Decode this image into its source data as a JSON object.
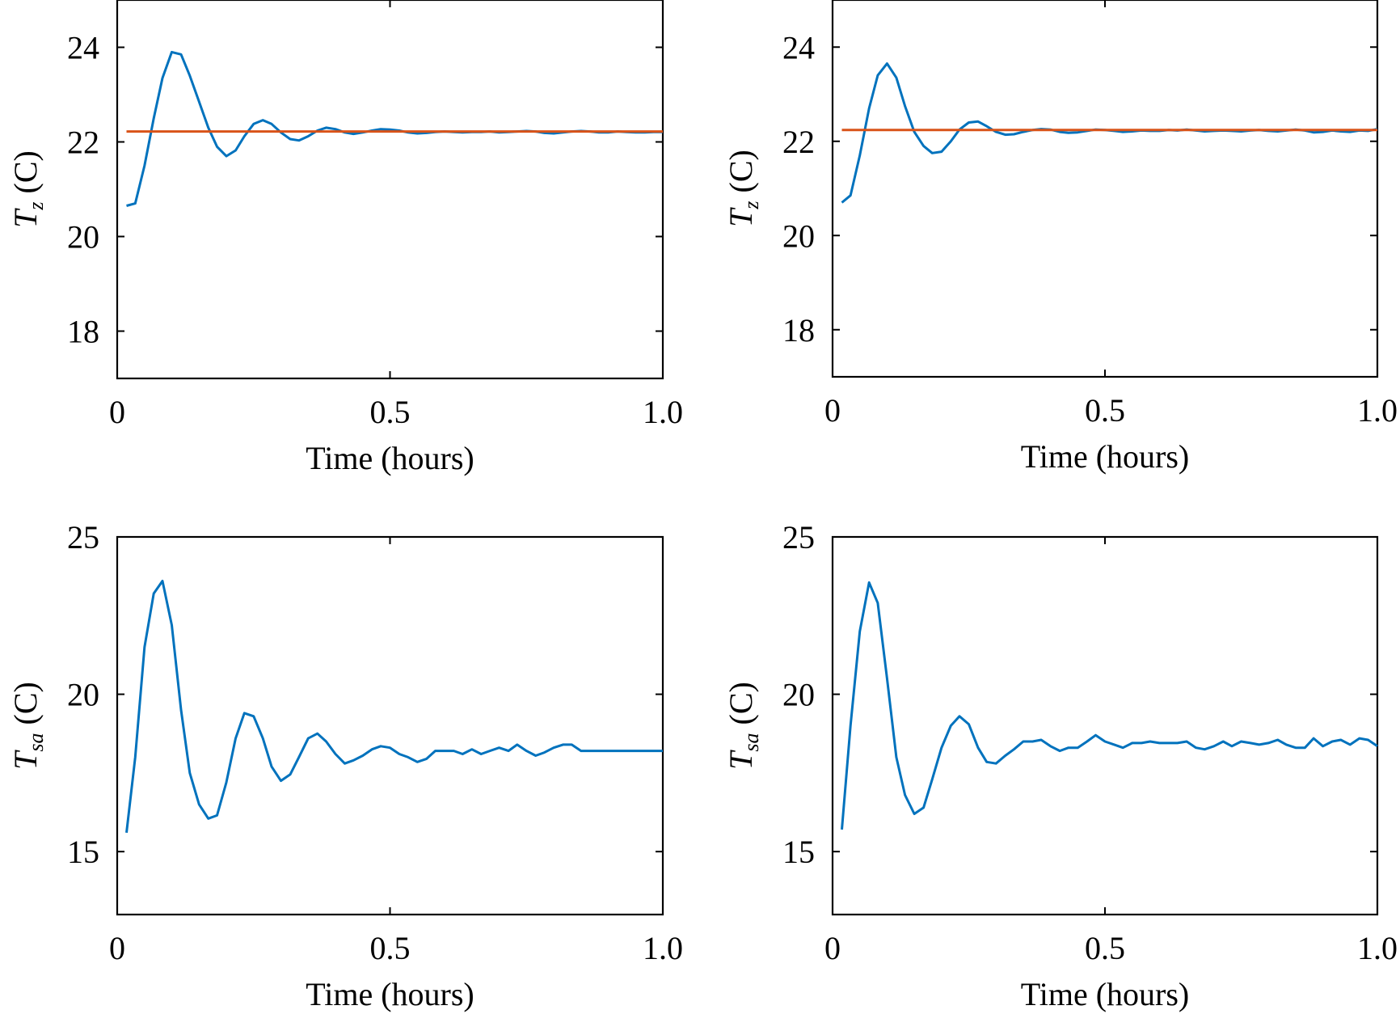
{
  "chart_data": [
    {
      "type": "line",
      "ylabel": {
        "symbol": "T",
        "subscript": "z",
        "unit": "(C)"
      },
      "xlabel": "Time (hours)",
      "xlim": [
        0,
        1.0
      ],
      "ylim": [
        17,
        25
      ],
      "xticks": [
        0,
        0.5,
        1.0
      ],
      "xtick_labels": [
        "0",
        "0.5",
        "1.0"
      ],
      "yticks": [
        18,
        20,
        22,
        24
      ],
      "ytick_labels": [
        "18",
        "20",
        "22",
        "24"
      ],
      "grid": false,
      "series": [
        {
          "color": "#0072BD",
          "x": [
            0.017,
            0.033,
            0.05,
            0.067,
            0.083,
            0.1,
            0.117,
            0.133,
            0.15,
            0.167,
            0.183,
            0.2,
            0.217,
            0.233,
            0.25,
            0.267,
            0.283,
            0.3,
            0.317,
            0.333,
            0.35,
            0.367,
            0.383,
            0.4,
            0.417,
            0.433,
            0.45,
            0.467,
            0.483,
            0.5,
            0.517,
            0.533,
            0.55,
            0.567,
            0.583,
            0.6,
            0.617,
            0.633,
            0.65,
            0.667,
            0.683,
            0.7,
            0.717,
            0.733,
            0.75,
            0.767,
            0.783,
            0.8,
            0.817,
            0.833,
            0.85,
            0.867,
            0.883,
            0.9,
            0.917,
            0.933,
            0.95,
            0.967,
            0.983,
            1.0
          ],
          "values": [
            20.65,
            20.7,
            21.5,
            22.5,
            23.35,
            23.9,
            23.85,
            23.4,
            22.85,
            22.3,
            21.9,
            21.7,
            21.82,
            22.12,
            22.38,
            22.46,
            22.38,
            22.2,
            22.06,
            22.03,
            22.12,
            22.24,
            22.3,
            22.27,
            22.2,
            22.17,
            22.2,
            22.24,
            22.27,
            22.26,
            22.24,
            22.2,
            22.18,
            22.19,
            22.21,
            22.22,
            22.21,
            22.2,
            22.21,
            22.21,
            22.22,
            22.2,
            22.21,
            22.22,
            22.23,
            22.22,
            22.19,
            22.18,
            22.2,
            22.22,
            22.23,
            22.22,
            22.2,
            22.2,
            22.22,
            22.21,
            22.2,
            22.2,
            22.21,
            22.21
          ]
        },
        {
          "color": "#D95319",
          "x": [
            0.017,
            1.0
          ],
          "values": [
            22.22,
            22.22
          ]
        }
      ]
    },
    {
      "type": "line",
      "ylabel": {
        "symbol": "T",
        "subscript": "z",
        "unit": "(C)"
      },
      "xlabel": "Time (hours)",
      "xlim": [
        0,
        1.0
      ],
      "ylim": [
        17,
        25
      ],
      "xticks": [
        0,
        0.5,
        1.0
      ],
      "xtick_labels": [
        "0",
        "0.5",
        "1.0"
      ],
      "yticks": [
        18,
        20,
        22,
        24
      ],
      "ytick_labels": [
        "18",
        "20",
        "22",
        "24"
      ],
      "grid": false,
      "series": [
        {
          "color": "#0072BD",
          "x": [
            0.017,
            0.033,
            0.05,
            0.067,
            0.083,
            0.1,
            0.117,
            0.133,
            0.15,
            0.167,
            0.183,
            0.2,
            0.217,
            0.233,
            0.25,
            0.267,
            0.283,
            0.3,
            0.317,
            0.333,
            0.35,
            0.367,
            0.383,
            0.4,
            0.417,
            0.433,
            0.45,
            0.467,
            0.483,
            0.5,
            0.517,
            0.533,
            0.55,
            0.567,
            0.583,
            0.6,
            0.617,
            0.633,
            0.65,
            0.667,
            0.683,
            0.7,
            0.717,
            0.733,
            0.75,
            0.767,
            0.783,
            0.8,
            0.817,
            0.833,
            0.85,
            0.867,
            0.883,
            0.9,
            0.917,
            0.933,
            0.95,
            0.967,
            0.983,
            1.0
          ],
          "values": [
            20.7,
            20.85,
            21.7,
            22.7,
            23.4,
            23.65,
            23.35,
            22.75,
            22.2,
            21.9,
            21.75,
            21.78,
            22.0,
            22.25,
            22.4,
            22.42,
            22.32,
            22.2,
            22.14,
            22.15,
            22.2,
            22.24,
            22.26,
            22.25,
            22.2,
            22.18,
            22.19,
            22.22,
            22.25,
            22.24,
            22.22,
            22.2,
            22.21,
            22.23,
            22.22,
            22.22,
            22.24,
            22.23,
            22.25,
            22.23,
            22.21,
            22.22,
            22.23,
            22.22,
            22.21,
            22.23,
            22.24,
            22.22,
            22.21,
            22.23,
            22.25,
            22.23,
            22.19,
            22.2,
            22.23,
            22.21,
            22.2,
            22.23,
            22.22,
            22.26
          ]
        },
        {
          "color": "#D95319",
          "x": [
            0.017,
            1.0
          ],
          "values": [
            22.24,
            22.24
          ]
        }
      ]
    },
    {
      "type": "line",
      "ylabel": {
        "symbol": "T",
        "subscript": "sa",
        "unit": "(C)"
      },
      "xlabel": "Time (hours)",
      "xlim": [
        0,
        1.0
      ],
      "ylim": [
        13,
        25
      ],
      "xticks": [
        0,
        0.5,
        1.0
      ],
      "xtick_labels": [
        "0",
        "0.5",
        "1.0"
      ],
      "yticks": [
        15,
        20,
        25
      ],
      "ytick_labels": [
        "15",
        "20",
        "25"
      ],
      "grid": false,
      "series": [
        {
          "color": "#0072BD",
          "x": [
            0.017,
            0.033,
            0.05,
            0.067,
            0.083,
            0.1,
            0.117,
            0.133,
            0.15,
            0.167,
            0.183,
            0.2,
            0.217,
            0.233,
            0.25,
            0.267,
            0.283,
            0.3,
            0.317,
            0.333,
            0.35,
            0.367,
            0.383,
            0.4,
            0.417,
            0.433,
            0.45,
            0.467,
            0.483,
            0.5,
            0.517,
            0.533,
            0.55,
            0.567,
            0.583,
            0.6,
            0.617,
            0.633,
            0.65,
            0.667,
            0.683,
            0.7,
            0.717,
            0.733,
            0.75,
            0.767,
            0.783,
            0.8,
            0.817,
            0.833,
            0.85,
            0.867,
            0.883,
            0.9,
            0.917,
            0.933,
            0.95,
            0.967,
            0.983,
            1.0
          ],
          "values": [
            15.6,
            18.0,
            21.5,
            23.2,
            23.6,
            22.2,
            19.5,
            17.5,
            16.5,
            16.05,
            16.15,
            17.2,
            18.6,
            19.4,
            19.3,
            18.6,
            17.7,
            17.25,
            17.45,
            18.0,
            18.6,
            18.75,
            18.5,
            18.1,
            17.8,
            17.9,
            18.05,
            18.25,
            18.35,
            18.3,
            18.1,
            18.0,
            17.85,
            17.95,
            18.2,
            18.2,
            18.2,
            18.1,
            18.25,
            18.1,
            18.2,
            18.3,
            18.2,
            18.4,
            18.2,
            18.05,
            18.15,
            18.3,
            18.4,
            18.4,
            18.2,
            18.2,
            18.2,
            18.2,
            18.2,
            18.2,
            18.2,
            18.2,
            18.2,
            18.2
          ]
        }
      ]
    },
    {
      "type": "line",
      "ylabel": {
        "symbol": "T",
        "subscript": "sa",
        "unit": "(C)"
      },
      "xlabel": "Time (hours)",
      "xlim": [
        0,
        1.0
      ],
      "ylim": [
        13,
        25
      ],
      "xticks": [
        0,
        0.5,
        1.0
      ],
      "xtick_labels": [
        "0",
        "0.5",
        "1.0"
      ],
      "yticks": [
        15,
        20,
        25
      ],
      "ytick_labels": [
        "15",
        "20",
        "25"
      ],
      "grid": false,
      "series": [
        {
          "color": "#0072BD",
          "x": [
            0.017,
            0.033,
            0.05,
            0.067,
            0.083,
            0.1,
            0.117,
            0.133,
            0.15,
            0.167,
            0.183,
            0.2,
            0.217,
            0.233,
            0.25,
            0.267,
            0.283,
            0.3,
            0.317,
            0.333,
            0.35,
            0.367,
            0.383,
            0.4,
            0.417,
            0.433,
            0.45,
            0.467,
            0.483,
            0.5,
            0.517,
            0.533,
            0.55,
            0.567,
            0.583,
            0.6,
            0.617,
            0.633,
            0.65,
            0.667,
            0.683,
            0.7,
            0.717,
            0.733,
            0.75,
            0.767,
            0.783,
            0.8,
            0.817,
            0.833,
            0.85,
            0.867,
            0.883,
            0.9,
            0.917,
            0.933,
            0.95,
            0.967,
            0.983,
            1.0
          ],
          "values": [
            15.7,
            19.0,
            22.0,
            23.55,
            22.9,
            20.5,
            18.0,
            16.8,
            16.2,
            16.4,
            17.3,
            18.3,
            19.0,
            19.3,
            19.05,
            18.3,
            17.85,
            17.8,
            18.05,
            18.25,
            18.5,
            18.5,
            18.55,
            18.35,
            18.2,
            18.3,
            18.3,
            18.5,
            18.7,
            18.5,
            18.4,
            18.3,
            18.45,
            18.45,
            18.5,
            18.45,
            18.45,
            18.45,
            18.5,
            18.3,
            18.25,
            18.35,
            18.5,
            18.35,
            18.5,
            18.45,
            18.4,
            18.45,
            18.55,
            18.4,
            18.3,
            18.3,
            18.6,
            18.35,
            18.5,
            18.55,
            18.4,
            18.6,
            18.55,
            18.35
          ]
        }
      ]
    }
  ]
}
